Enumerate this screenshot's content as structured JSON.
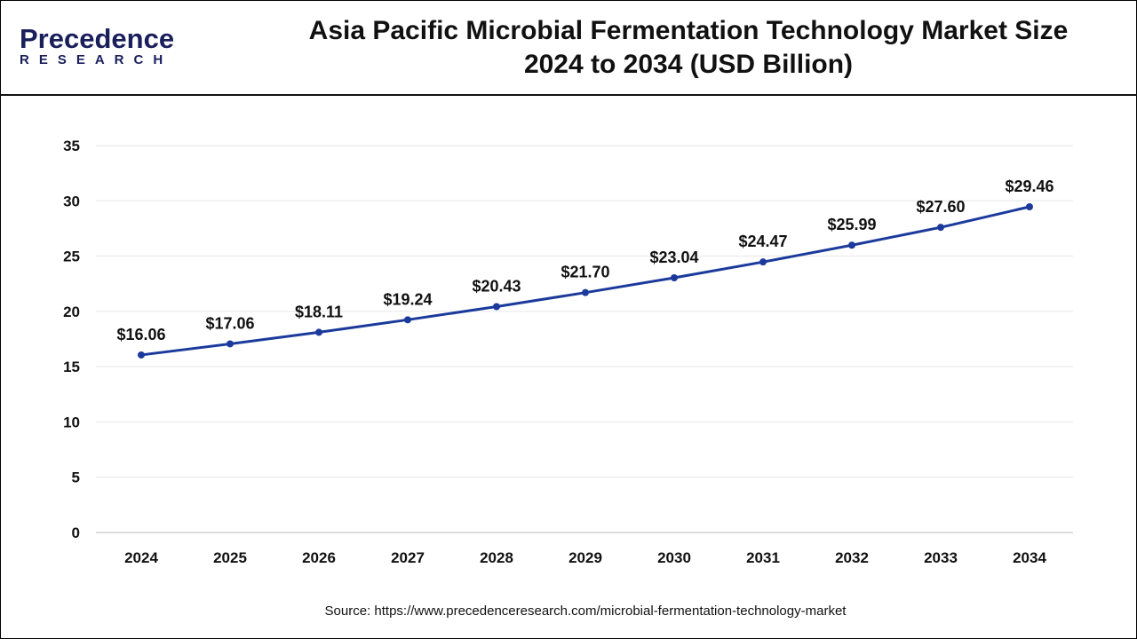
{
  "logo": {
    "brand": "Precedence",
    "sub": "RESEARCH"
  },
  "header": {
    "title_line1": "Asia Pacific Microbial Fermentation Technology Market Size",
    "title_line2": "2024 to 2034 (USD Billion)"
  },
  "source": "Source: https://www.precedenceresearch.com/microbial-fermentation-technology-market",
  "colors": {
    "line": "#1b3a9c",
    "grid": "#e6e6e6"
  },
  "chart_data": {
    "type": "line",
    "title": "Asia Pacific Microbial Fermentation Technology Market Size 2024 to 2034 (USD Billion)",
    "xlabel": "",
    "ylabel": "",
    "categories": [
      "2024",
      "2025",
      "2026",
      "2027",
      "2028",
      "2029",
      "2030",
      "2031",
      "2032",
      "2033",
      "2034"
    ],
    "series": [
      {
        "name": "Market Size",
        "values": [
          16.06,
          17.06,
          18.11,
          19.24,
          20.43,
          21.7,
          23.04,
          24.47,
          25.99,
          27.6,
          29.46
        ]
      }
    ],
    "data_labels": [
      "$16.06",
      "$17.06",
      "$18.11",
      "$19.24",
      "$20.43",
      "$21.70",
      "$23.04",
      "$24.47",
      "$25.99",
      "$27.60",
      "$29.46"
    ],
    "ylim": [
      0,
      35
    ],
    "yticks": [
      0,
      5,
      10,
      15,
      20,
      25,
      30,
      35
    ],
    "grid": true,
    "legend": "none"
  }
}
